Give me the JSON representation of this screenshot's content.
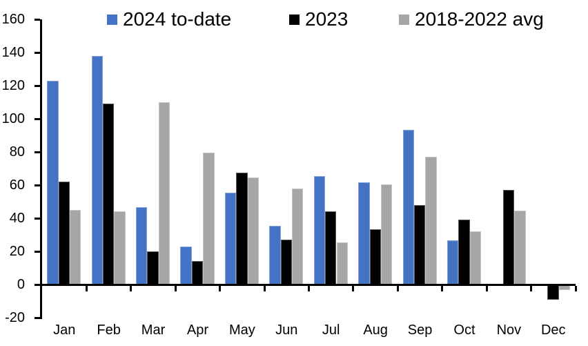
{
  "chart_data": {
    "type": "bar",
    "title": "",
    "xlabel": "",
    "ylabel": "",
    "categories": [
      "Jan",
      "Feb",
      "Mar",
      "Apr",
      "May",
      "Jun",
      "Jul",
      "Aug",
      "Sep",
      "Oct",
      "Nov",
      "Dec"
    ],
    "series": [
      {
        "name": "2024 to-date",
        "color": "#4472C4",
        "values": [
          123,
          138,
          46.5,
          23,
          55.5,
          35.5,
          65.5,
          61.5,
          93.5,
          26.5,
          null,
          null
        ]
      },
      {
        "name": "2023",
        "color": "#000000",
        "values": [
          62,
          109,
          20,
          14,
          67.5,
          27,
          44,
          33.5,
          48,
          39,
          57,
          -9
        ]
      },
      {
        "name": "2018-2022 avg",
        "color": "#A6A6A6",
        "values": [
          45,
          44,
          110,
          79.5,
          64.5,
          58,
          25.5,
          60.5,
          77,
          32,
          44.5,
          -3.5
        ]
      }
    ],
    "ylim": [
      -20,
      160
    ],
    "yticks": [
      160,
      140,
      120,
      100,
      80,
      60,
      40,
      20,
      0,
      -20
    ],
    "grid": false,
    "legend_position": "top",
    "axis_color": "#000000",
    "text_color": "#000000"
  }
}
